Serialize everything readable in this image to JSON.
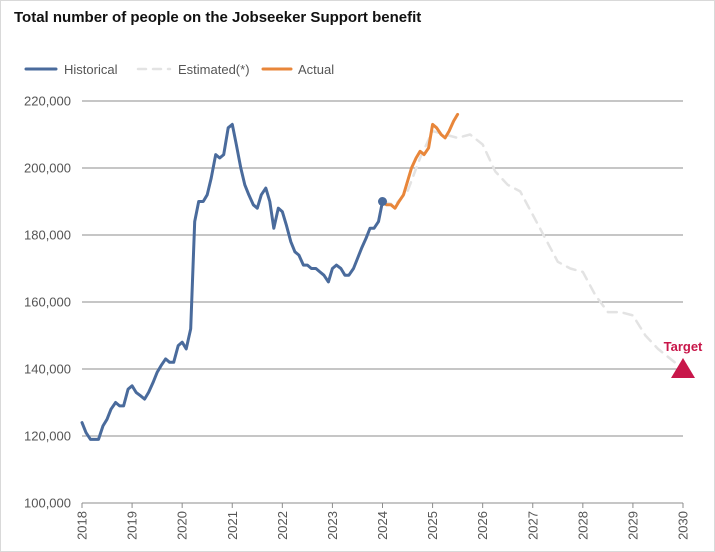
{
  "chart_data": {
    "type": "line",
    "title": "Total number of people on the Jobseeker Support benefit",
    "xlabel": "",
    "ylabel": "",
    "xlim": [
      2018,
      2030
    ],
    "ylim": [
      100000,
      220000
    ],
    "x_ticks": [
      "2018",
      "2019",
      "2020",
      "2021",
      "2022",
      "2023",
      "2024",
      "2025",
      "2026",
      "2027",
      "2028",
      "2029",
      "2030"
    ],
    "y_ticks": [
      {
        "value": 100000,
        "label": "100,000"
      },
      {
        "value": 120000,
        "label": "120,000"
      },
      {
        "value": 140000,
        "label": "140,000"
      },
      {
        "value": 160000,
        "label": "160,000"
      },
      {
        "value": 180000,
        "label": "180,000"
      },
      {
        "value": 200000,
        "label": "200,000"
      },
      {
        "value": 220000,
        "label": "220,000"
      }
    ],
    "legend": [
      "Historical",
      "Estimated(*)",
      "Actual"
    ],
    "colors": {
      "historical": "#4a6b9c",
      "estimated": "#e3e3e3",
      "actual": "#e8863a",
      "target": "#c8174a",
      "grid": "#8c8c8c"
    },
    "series": [
      {
        "name": "Historical",
        "style": "solid",
        "x": [
          2018.0,
          2018.08,
          2018.17,
          2018.25,
          2018.33,
          2018.42,
          2018.5,
          2018.58,
          2018.67,
          2018.75,
          2018.83,
          2018.92,
          2019.0,
          2019.08,
          2019.17,
          2019.25,
          2019.33,
          2019.42,
          2019.5,
          2019.58,
          2019.67,
          2019.75,
          2019.83,
          2019.92,
          2020.0,
          2020.08,
          2020.17,
          2020.25,
          2020.33,
          2020.42,
          2020.5,
          2020.58,
          2020.67,
          2020.75,
          2020.83,
          2020.92,
          2021.0,
          2021.08,
          2021.17,
          2021.25,
          2021.33,
          2021.42,
          2021.5,
          2021.58,
          2021.67,
          2021.75,
          2021.83,
          2021.92,
          2022.0,
          2022.08,
          2022.17,
          2022.25,
          2022.33,
          2022.42,
          2022.5,
          2022.58,
          2022.67,
          2022.75,
          2022.83,
          2022.92,
          2023.0,
          2023.08,
          2023.17,
          2023.25,
          2023.33,
          2023.42,
          2023.5,
          2023.58,
          2023.67,
          2023.75,
          2023.83,
          2023.92,
          2024.0
        ],
        "values": [
          124000,
          121000,
          119000,
          119000,
          119000,
          123000,
          125000,
          128000,
          130000,
          129000,
          129000,
          134000,
          135000,
          133000,
          132000,
          131000,
          133000,
          136000,
          139000,
          141000,
          143000,
          142000,
          142000,
          147000,
          148000,
          146000,
          152000,
          184000,
          190000,
          190000,
          192000,
          197000,
          204000,
          203000,
          204000,
          212000,
          213000,
          207000,
          200000,
          195000,
          192000,
          189000,
          188000,
          192000,
          194000,
          190000,
          182000,
          188000,
          187000,
          183000,
          178000,
          175000,
          174000,
          171000,
          171000,
          170000,
          170000,
          169000,
          168000,
          166000,
          170000,
          171000,
          170000,
          168000,
          168000,
          170000,
          173000,
          176000,
          179000,
          182000,
          182000,
          184000,
          190000
        ]
      },
      {
        "name": "Estimated(*)",
        "style": "dashed",
        "x": [
          2024.0,
          2024.25,
          2024.5,
          2024.75,
          2025.0,
          2025.25,
          2025.5,
          2025.75,
          2026.0,
          2026.25,
          2026.5,
          2026.75,
          2027.0,
          2027.25,
          2027.5,
          2027.75,
          2028.0,
          2028.25,
          2028.5,
          2028.75,
          2029.0,
          2029.25,
          2029.5,
          2029.75,
          2030.0
        ],
        "values": [
          190000,
          189000,
          193000,
          203000,
          211000,
          210000,
          209000,
          210000,
          207000,
          199000,
          195000,
          193000,
          186000,
          179000,
          172000,
          170000,
          169000,
          162000,
          157000,
          157000,
          156000,
          150000,
          146000,
          143000,
          140000
        ]
      },
      {
        "name": "Actual",
        "style": "solid",
        "x": [
          2024.0,
          2024.08,
          2024.17,
          2024.25,
          2024.33,
          2024.42,
          2024.5,
          2024.58,
          2024.67,
          2024.75,
          2024.83,
          2024.92,
          2025.0,
          2025.08,
          2025.17,
          2025.25,
          2025.33,
          2025.42,
          2025.5
        ],
        "values": [
          190000,
          189000,
          189000,
          188000,
          190000,
          192000,
          196000,
          200000,
          203000,
          205000,
          204000,
          206000,
          213000,
          212000,
          210000,
          209000,
          211000,
          214000,
          216000
        ]
      }
    ],
    "annotations": [
      {
        "label": "Target",
        "x": 2030,
        "y": 140000,
        "marker": "triangle"
      }
    ]
  }
}
